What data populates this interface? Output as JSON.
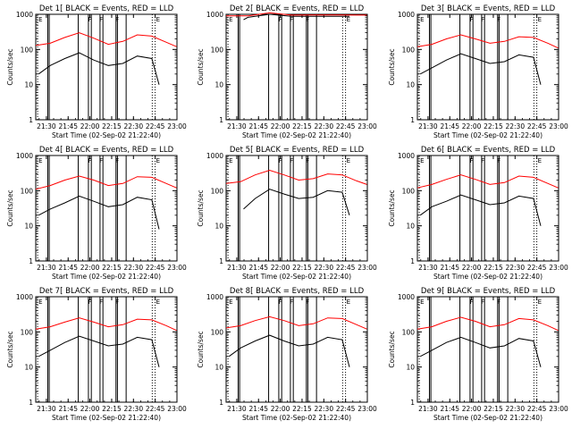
{
  "chart_data": [
    {
      "type": "line",
      "title": "Det 1[ BLACK = Events, RED = LLD",
      "xlabel": "Start Time (02-Sep-02 21:22:40)",
      "ylabel": "Counts/sec",
      "yscale": "log",
      "ylim": [
        1,
        1000
      ],
      "xlim_minutes": [
        0,
        97.33
      ],
      "xticks": [
        "21:30",
        "21:45",
        "22:00",
        "22:15",
        "22:30",
        "22:45",
        "23:00"
      ],
      "yticks": [
        "1",
        "10",
        "100",
        "1000"
      ],
      "series": [
        {
          "color": "#ff0000",
          "x": [
            0,
            10,
            20,
            30,
            40,
            50,
            60,
            70,
            80,
            90,
            97
          ],
          "y": [
            130,
            150,
            220,
            300,
            210,
            140,
            170,
            260,
            240,
            160,
            120
          ]
        },
        {
          "color": "#000000",
          "x": [
            2,
            10,
            20,
            30,
            40,
            50,
            60,
            70,
            80,
            85
          ],
          "y": [
            20,
            35,
            55,
            80,
            50,
            35,
            40,
            65,
            55,
            10
          ]
        }
      ],
      "event_flags": [
        {
          "label": "E",
          "x": 1.3
        },
        {
          "label": "F",
          "x": 35.5
        },
        {
          "label": "F",
          "x": 43.3
        },
        {
          "label": "F",
          "x": 54.3
        },
        {
          "label": "E",
          "x": 82.3
        }
      ],
      "solid_vlines": [
        8.3,
        9.3,
        29.3,
        36.3,
        38.3,
        44.3,
        46.3,
        55.3,
        56.3,
        62.3
      ],
      "dotted_vlines": [
        1.3,
        80.3,
        82.3
      ]
    },
    {
      "type": "line",
      "title": "Det 2[ BLACK = Events, RED = LLD",
      "xlabel": "Start Time (02-Sep-02 21:22:40)",
      "ylabel": "Counts/sec",
      "yscale": "log",
      "ylim": [
        1,
        1000
      ],
      "xlim_minutes": [
        0,
        97.33
      ],
      "xticks": [
        "21:30",
        "21:45",
        "22:00",
        "22:15",
        "22:30",
        "22:45",
        "23:00"
      ],
      "yticks": [
        "1",
        "10",
        "100",
        "1000"
      ],
      "series": [
        {
          "color": "#ff0000",
          "x": [
            0,
            15,
            30,
            45,
            60,
            75,
            90,
            97
          ],
          "y": [
            900,
            900,
            1100,
            950,
            960,
            960,
            950,
            950
          ]
        },
        {
          "color": "#000000",
          "x": [
            12,
            15,
            30,
            45,
            60,
            75,
            85
          ],
          "y": [
            700,
            820,
            1000,
            880,
            880,
            880,
            880
          ]
        }
      ],
      "event_flags": [
        {
          "label": "E",
          "x": 1.3
        },
        {
          "label": "F",
          "x": 35.5
        },
        {
          "label": "F",
          "x": 43.3
        },
        {
          "label": "F",
          "x": 54.3
        },
        {
          "label": "E",
          "x": 82.3
        }
      ],
      "solid_vlines": [
        8.3,
        9.3,
        29.3,
        36.3,
        38.3,
        44.3,
        46.3,
        55.3,
        56.3,
        62.3
      ],
      "dotted_vlines": [
        1.3,
        80.3,
        82.3
      ]
    },
    {
      "type": "line",
      "title": "Det 3[ BLACK = Events, RED = LLD",
      "xlabel": "Start Time (02-Sep-02 21:22:40)",
      "ylabel": "Counts/sec",
      "yscale": "log",
      "ylim": [
        1,
        1000
      ],
      "xlim_minutes": [
        0,
        97.33
      ],
      "xticks": [
        "21:30",
        "21:45",
        "22:00",
        "22:15",
        "22:30",
        "22:45",
        "23:00"
      ],
      "yticks": [
        "1",
        "10",
        "100",
        "1000"
      ],
      "series": [
        {
          "color": "#ff0000",
          "x": [
            0,
            10,
            20,
            30,
            40,
            50,
            60,
            70,
            80,
            90,
            97
          ],
          "y": [
            120,
            140,
            200,
            260,
            200,
            150,
            170,
            230,
            220,
            150,
            110
          ]
        },
        {
          "color": "#000000",
          "x": [
            2,
            10,
            20,
            30,
            40,
            50,
            60,
            70,
            80,
            85
          ],
          "y": [
            20,
            30,
            50,
            75,
            55,
            40,
            45,
            70,
            60,
            10
          ]
        }
      ],
      "event_flags": [
        {
          "label": "E",
          "x": 1.3
        },
        {
          "label": "F",
          "x": 35.5
        },
        {
          "label": "F",
          "x": 43.3
        },
        {
          "label": "F",
          "x": 54.3
        },
        {
          "label": "E",
          "x": 82.3
        }
      ],
      "solid_vlines": [
        8.3,
        9.3,
        29.3,
        36.3,
        38.3,
        44.3,
        46.3,
        55.3,
        56.3,
        62.3
      ],
      "dotted_vlines": [
        1.3,
        80.3,
        82.3
      ]
    },
    {
      "type": "line",
      "title": "Det 4[ BLACK = Events, RED = LLD",
      "xlabel": "Start Time (02-Sep-02 21:22:40)",
      "ylabel": "Counts/sec",
      "yscale": "log",
      "ylim": [
        1,
        1000
      ],
      "xlim_minutes": [
        0,
        97.33
      ],
      "xticks": [
        "21:30",
        "21:45",
        "22:00",
        "22:15",
        "22:30",
        "22:45",
        "23:00"
      ],
      "yticks": [
        "1",
        "10",
        "100",
        "1000"
      ],
      "series": [
        {
          "color": "#ff0000",
          "x": [
            0,
            10,
            20,
            30,
            40,
            50,
            60,
            70,
            80,
            90,
            97
          ],
          "y": [
            110,
            140,
            200,
            260,
            200,
            140,
            160,
            250,
            240,
            160,
            120
          ]
        },
        {
          "color": "#000000",
          "x": [
            2,
            10,
            20,
            30,
            40,
            50,
            60,
            70,
            80,
            85
          ],
          "y": [
            20,
            30,
            45,
            70,
            50,
            35,
            40,
            65,
            55,
            8
          ]
        }
      ],
      "event_flags": [
        {
          "label": "E",
          "x": 1.3
        },
        {
          "label": "F",
          "x": 35.5
        },
        {
          "label": "F",
          "x": 43.3
        },
        {
          "label": "F",
          "x": 54.3
        },
        {
          "label": "E",
          "x": 82.3
        }
      ],
      "solid_vlines": [
        8.3,
        9.3,
        29.3,
        36.3,
        38.3,
        44.3,
        46.3,
        55.3,
        56.3,
        62.3
      ],
      "dotted_vlines": [
        1.3,
        80.3,
        82.3
      ]
    },
    {
      "type": "line",
      "title": "Det 5[ BLACK = Events, RED = LLD",
      "xlabel": "Start Time (02-Sep-02 21:22:40)",
      "ylabel": "Counts/sec",
      "yscale": "log",
      "ylim": [
        1,
        1000
      ],
      "xlim_minutes": [
        0,
        97.33
      ],
      "xticks": [
        "21:30",
        "21:45",
        "22:00",
        "22:15",
        "22:30",
        "22:45",
        "23:00"
      ],
      "yticks": [
        "1",
        "10",
        "100",
        "1000"
      ],
      "series": [
        {
          "color": "#ff0000",
          "x": [
            0,
            10,
            20,
            30,
            40,
            50,
            60,
            70,
            80,
            90,
            97
          ],
          "y": [
            160,
            180,
            280,
            380,
            280,
            200,
            220,
            300,
            280,
            190,
            150
          ]
        },
        {
          "color": "#000000",
          "x": [
            12,
            20,
            30,
            40,
            50,
            60,
            70,
            80,
            85
          ],
          "y": [
            30,
            60,
            110,
            80,
            60,
            65,
            100,
            90,
            20
          ]
        }
      ],
      "event_flags": [
        {
          "label": "E",
          "x": 1.3
        },
        {
          "label": "F",
          "x": 35.5
        },
        {
          "label": "F",
          "x": 43.3
        },
        {
          "label": "F",
          "x": 54.3
        },
        {
          "label": "E",
          "x": 82.3
        }
      ],
      "solid_vlines": [
        8.3,
        9.3,
        29.3,
        36.3,
        38.3,
        44.3,
        46.3,
        55.3,
        56.3,
        62.3
      ],
      "dotted_vlines": [
        1.3,
        80.3,
        82.3
      ]
    },
    {
      "type": "line",
      "title": "Det 6[ BLACK = Events, RED = LLD",
      "xlabel": "Start Time (02-Sep-02 21:22:40)",
      "ylabel": "Counts/sec",
      "yscale": "log",
      "ylim": [
        1,
        1000
      ],
      "xlim_minutes": [
        0,
        97.33
      ],
      "xticks": [
        "21:30",
        "21:45",
        "22:00",
        "22:15",
        "22:30",
        "22:45",
        "23:00"
      ],
      "yticks": [
        "1",
        "10",
        "100",
        "1000"
      ],
      "series": [
        {
          "color": "#ff0000",
          "x": [
            0,
            10,
            20,
            30,
            40,
            50,
            60,
            70,
            80,
            90,
            97
          ],
          "y": [
            120,
            150,
            210,
            280,
            210,
            150,
            170,
            260,
            240,
            160,
            120
          ]
        },
        {
          "color": "#000000",
          "x": [
            2,
            10,
            20,
            30,
            40,
            50,
            60,
            70,
            80,
            85
          ],
          "y": [
            20,
            35,
            50,
            75,
            55,
            40,
            45,
            70,
            60,
            10
          ]
        }
      ],
      "event_flags": [
        {
          "label": "E",
          "x": 1.3
        },
        {
          "label": "F",
          "x": 35.5
        },
        {
          "label": "F",
          "x": 43.3
        },
        {
          "label": "F",
          "x": 54.3
        },
        {
          "label": "E",
          "x": 82.3
        }
      ],
      "solid_vlines": [
        8.3,
        9.3,
        29.3,
        36.3,
        38.3,
        44.3,
        46.3,
        55.3,
        56.3,
        62.3
      ],
      "dotted_vlines": [
        1.3,
        80.3,
        82.3
      ]
    },
    {
      "type": "line",
      "title": "Det 7[ BLACK = Events, RED = LLD",
      "xlabel": "Start Time (02-Sep-02 21:22:40)",
      "ylabel": "Counts/sec",
      "yscale": "log",
      "ylim": [
        1,
        1000
      ],
      "xlim_minutes": [
        0,
        97.33
      ],
      "xticks": [
        "21:30",
        "21:45",
        "22:00",
        "22:15",
        "22:30",
        "22:45",
        "23:00"
      ],
      "yticks": [
        "1",
        "10",
        "100",
        "1000"
      ],
      "series": [
        {
          "color": "#ff0000",
          "x": [
            0,
            10,
            20,
            30,
            40,
            50,
            60,
            70,
            80,
            90,
            97
          ],
          "y": [
            120,
            140,
            190,
            250,
            190,
            140,
            160,
            230,
            220,
            150,
            110
          ]
        },
        {
          "color": "#000000",
          "x": [
            2,
            10,
            20,
            30,
            40,
            50,
            60,
            70,
            80,
            85
          ],
          "y": [
            20,
            30,
            50,
            75,
            55,
            40,
            45,
            70,
            60,
            10
          ]
        }
      ],
      "event_flags": [
        {
          "label": "E",
          "x": 1.3
        },
        {
          "label": "F",
          "x": 35.5
        },
        {
          "label": "F",
          "x": 43.3
        },
        {
          "label": "F",
          "x": 54.3
        },
        {
          "label": "E",
          "x": 82.3
        }
      ],
      "solid_vlines": [
        8.3,
        9.3,
        29.3,
        36.3,
        38.3,
        44.3,
        46.3,
        55.3,
        56.3,
        62.3
      ],
      "dotted_vlines": [
        1.3,
        80.3,
        82.3
      ]
    },
    {
      "type": "line",
      "title": "Det 8[ BLACK = Events, RED = LLD",
      "xlabel": "Start Time (02-Sep-02 21:22:40)",
      "ylabel": "Counts/sec",
      "yscale": "log",
      "ylim": [
        1,
        1000
      ],
      "xlim_minutes": [
        0,
        97.33
      ],
      "xticks": [
        "21:30",
        "21:45",
        "22:00",
        "22:15",
        "22:30",
        "22:45",
        "23:00"
      ],
      "yticks": [
        "1",
        "10",
        "100",
        "1000"
      ],
      "series": [
        {
          "color": "#ff0000",
          "x": [
            0,
            10,
            20,
            30,
            40,
            50,
            60,
            70,
            80,
            90,
            97
          ],
          "y": [
            130,
            150,
            210,
            270,
            210,
            150,
            170,
            250,
            240,
            160,
            120
          ]
        },
        {
          "color": "#000000",
          "x": [
            2,
            10,
            20,
            30,
            40,
            50,
            60,
            70,
            80,
            85
          ],
          "y": [
            20,
            35,
            55,
            80,
            55,
            40,
            45,
            70,
            60,
            10
          ]
        }
      ],
      "event_flags": [
        {
          "label": "E",
          "x": 1.3
        },
        {
          "label": "F",
          "x": 35.5
        },
        {
          "label": "F",
          "x": 43.3
        },
        {
          "label": "F",
          "x": 54.3
        },
        {
          "label": "E",
          "x": 82.3
        }
      ],
      "solid_vlines": [
        8.3,
        9.3,
        29.3,
        36.3,
        38.3,
        44.3,
        46.3,
        55.3,
        56.3,
        62.3
      ],
      "dotted_vlines": [
        1.3,
        80.3,
        82.3
      ]
    },
    {
      "type": "line",
      "title": "Det 9[ BLACK = Events, RED = LLD",
      "xlabel": "Start Time (02-Sep-02 21:22:40)",
      "ylabel": "Counts/sec",
      "yscale": "log",
      "ylim": [
        1,
        1000
      ],
      "xlim_minutes": [
        0,
        97.33
      ],
      "xticks": [
        "21:30",
        "21:45",
        "22:00",
        "22:15",
        "22:30",
        "22:45",
        "23:00"
      ],
      "yticks": [
        "1",
        "10",
        "100",
        "1000"
      ],
      "series": [
        {
          "color": "#ff0000",
          "x": [
            0,
            10,
            20,
            30,
            40,
            50,
            60,
            70,
            80,
            90,
            97
          ],
          "y": [
            120,
            140,
            200,
            260,
            200,
            140,
            160,
            240,
            220,
            150,
            110
          ]
        },
        {
          "color": "#000000",
          "x": [
            2,
            10,
            20,
            30,
            40,
            50,
            60,
            70,
            80,
            85
          ],
          "y": [
            20,
            30,
            50,
            70,
            50,
            35,
            40,
            65,
            55,
            10
          ]
        }
      ],
      "event_flags": [
        {
          "label": "E",
          "x": 1.3
        },
        {
          "label": "F",
          "x": 35.5
        },
        {
          "label": "F",
          "x": 43.3
        },
        {
          "label": "F",
          "x": 54.3
        },
        {
          "label": "E",
          "x": 82.3
        }
      ],
      "solid_vlines": [
        8.3,
        9.3,
        29.3,
        36.3,
        38.3,
        44.3,
        46.3,
        55.3,
        56.3,
        62.3
      ],
      "dotted_vlines": [
        1.3,
        80.3,
        82.3
      ]
    }
  ]
}
